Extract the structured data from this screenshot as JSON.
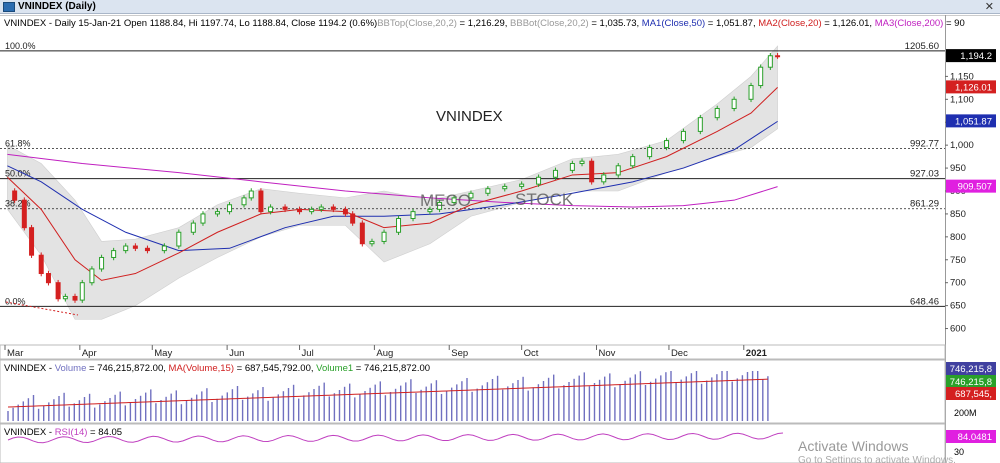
{
  "window": {
    "title": "VNINDEX (Daily)",
    "close_glyph": "✕"
  },
  "header": {
    "symbol": "VNINDEX - Daily 15-Jan-21 Open 1188.84, Hi 1197.74, Lo 1188.84, Close 1194.2 (0.6%)",
    "bbtop": "BBTop(Close,20,2)",
    "bbtop_val": " = 1,216.29, ",
    "bbbot": "BBBot(Close,20,2)",
    "bbbot_val": " = 1,035.73, ",
    "ma1": "MA1(Close,50)",
    "ma1_val": " = 1,051.87, ",
    "ma2": "MA2(Close,20)",
    "ma2_val": " = 1,126.01, ",
    "ma3": "MA3(Close,200)",
    "ma3_val": " = 90"
  },
  "fib": {
    "levels": [
      {
        "label": "100.0%",
        "value": 1205.6,
        "value_label": "1205.60"
      },
      {
        "label": "61.8%",
        "value": 992.77,
        "value_label": "992.77"
      },
      {
        "label": "50.0%",
        "value": 927.03,
        "value_label": "927.03"
      },
      {
        "label": "38.2%",
        "value": 861.29,
        "value_label": "861.29"
      },
      {
        "label": "0.0%",
        "value": 648.46,
        "value_label": "648.46"
      }
    ]
  },
  "badges": {
    "price": "1,194.2",
    "ma2": "1,126.01",
    "ma1": "1,051.87",
    "ma3": "909.507",
    "vol1": "746,215,8",
    "vol2": "746,215,8",
    "vol3": "687,545,",
    "rsi": "84.0481"
  },
  "colors": {
    "up": "#2aa02a",
    "down": "#d42020",
    "ma1": "#1f2fb0",
    "ma2": "#d02020",
    "ma3": "#c020c0",
    "band": "#d8d8d8",
    "volume": "#7070c0",
    "rsi": "#c040c0"
  },
  "watermark": {
    "title": "VNINDEX",
    "text1": "MECO",
    "text2": "STOCK"
  },
  "volume_panel": {
    "label": "VNINDEX - ",
    "vol": "Volume",
    "vol_val": " = 746,215,872.00, ",
    "ma": "MA(Volume,15)",
    "ma_val": " = 687,545,792.00, ",
    "vol1": "Volume1",
    "vol1_val": " = 746,215,872.00",
    "axis_label": "200M"
  },
  "rsi_panel": {
    "label": "VNINDEX - ",
    "rsi": "RSI(14)",
    "rsi_val": " = 84.05",
    "axis_label": "30"
  },
  "activate": {
    "line1": "Activate Windows",
    "line2": "Go to Settings to activate Windows."
  },
  "chart_data": {
    "type": "candlestick",
    "title": "VNINDEX (Daily)",
    "ylim": [
      575,
      1225
    ],
    "y_ticks": [
      600,
      650,
      700,
      750,
      800,
      850,
      900,
      950,
      1000,
      1050,
      1100,
      1150
    ],
    "x_ticks": [
      "Mar",
      "Apr",
      "May",
      "Jun",
      "Jul",
      "Aug",
      "Sep",
      "Oct",
      "Nov",
      "Dec",
      "2021"
    ],
    "close": [
      {
        "d": "2020-03-02",
        "v": 900
      },
      {
        "d": "2020-03-05",
        "v": 880
      },
      {
        "d": "2020-03-09",
        "v": 820
      },
      {
        "d": "2020-03-12",
        "v": 760
      },
      {
        "d": "2020-03-16",
        "v": 720
      },
      {
        "d": "2020-03-19",
        "v": 700
      },
      {
        "d": "2020-03-23",
        "v": 665
      },
      {
        "d": "2020-03-26",
        "v": 670
      },
      {
        "d": "2020-03-30",
        "v": 662
      },
      {
        "d": "2020-04-02",
        "v": 700
      },
      {
        "d": "2020-04-06",
        "v": 730
      },
      {
        "d": "2020-04-10",
        "v": 755
      },
      {
        "d": "2020-04-15",
        "v": 770
      },
      {
        "d": "2020-04-20",
        "v": 780
      },
      {
        "d": "2020-04-24",
        "v": 775
      },
      {
        "d": "2020-04-29",
        "v": 770
      },
      {
        "d": "2020-05-06",
        "v": 780
      },
      {
        "d": "2020-05-12",
        "v": 810
      },
      {
        "d": "2020-05-18",
        "v": 830
      },
      {
        "d": "2020-05-22",
        "v": 850
      },
      {
        "d": "2020-05-28",
        "v": 855
      },
      {
        "d": "2020-06-02",
        "v": 870
      },
      {
        "d": "2020-06-08",
        "v": 885
      },
      {
        "d": "2020-06-11",
        "v": 900
      },
      {
        "d": "2020-06-15",
        "v": 855
      },
      {
        "d": "2020-06-19",
        "v": 865
      },
      {
        "d": "2020-06-25",
        "v": 860
      },
      {
        "d": "2020-07-01",
        "v": 855
      },
      {
        "d": "2020-07-06",
        "v": 860
      },
      {
        "d": "2020-07-10",
        "v": 865
      },
      {
        "d": "2020-07-15",
        "v": 860
      },
      {
        "d": "2020-07-20",
        "v": 850
      },
      {
        "d": "2020-07-23",
        "v": 830
      },
      {
        "d": "2020-07-27",
        "v": 785
      },
      {
        "d": "2020-07-31",
        "v": 790
      },
      {
        "d": "2020-08-05",
        "v": 810
      },
      {
        "d": "2020-08-11",
        "v": 840
      },
      {
        "d": "2020-08-17",
        "v": 855
      },
      {
        "d": "2020-08-24",
        "v": 860
      },
      {
        "d": "2020-08-28",
        "v": 875
      },
      {
        "d": "2020-09-03",
        "v": 885
      },
      {
        "d": "2020-09-10",
        "v": 895
      },
      {
        "d": "2020-09-17",
        "v": 905
      },
      {
        "d": "2020-09-24",
        "v": 910
      },
      {
        "d": "2020-10-01",
        "v": 915
      },
      {
        "d": "2020-10-08",
        "v": 930
      },
      {
        "d": "2020-10-15",
        "v": 945
      },
      {
        "d": "2020-10-22",
        "v": 960
      },
      {
        "d": "2020-10-26",
        "v": 965
      },
      {
        "d": "2020-10-30",
        "v": 920
      },
      {
        "d": "2020-11-04",
        "v": 935
      },
      {
        "d": "2020-11-10",
        "v": 955
      },
      {
        "d": "2020-11-16",
        "v": 975
      },
      {
        "d": "2020-11-23",
        "v": 995
      },
      {
        "d": "2020-11-30",
        "v": 1010
      },
      {
        "d": "2020-12-07",
        "v": 1030
      },
      {
        "d": "2020-12-14",
        "v": 1060
      },
      {
        "d": "2020-12-21",
        "v": 1080
      },
      {
        "d": "2020-12-28",
        "v": 1100
      },
      {
        "d": "2021-01-04",
        "v": 1130
      },
      {
        "d": "2021-01-08",
        "v": 1170
      },
      {
        "d": "2021-01-12",
        "v": 1195
      },
      {
        "d": "2021-01-15",
        "v": 1194.2
      }
    ],
    "ma2": [
      {
        "d": "2020-03-02",
        "v": 930
      },
      {
        "d": "2020-03-16",
        "v": 860
      },
      {
        "d": "2020-03-30",
        "v": 750
      },
      {
        "d": "2020-04-10",
        "v": 705
      },
      {
        "d": "2020-04-24",
        "v": 720
      },
      {
        "d": "2020-05-12",
        "v": 765
      },
      {
        "d": "2020-05-28",
        "v": 810
      },
      {
        "d": "2020-06-15",
        "v": 850
      },
      {
        "d": "2020-07-01",
        "v": 860
      },
      {
        "d": "2020-07-20",
        "v": 855
      },
      {
        "d": "2020-08-05",
        "v": 820
      },
      {
        "d": "2020-08-24",
        "v": 830
      },
      {
        "d": "2020-09-10",
        "v": 870
      },
      {
        "d": "2020-10-01",
        "v": 900
      },
      {
        "d": "2020-10-22",
        "v": 935
      },
      {
        "d": "2020-11-10",
        "v": 940
      },
      {
        "d": "2020-11-30",
        "v": 975
      },
      {
        "d": "2020-12-21",
        "v": 1030
      },
      {
        "d": "2021-01-04",
        "v": 1070
      },
      {
        "d": "2021-01-15",
        "v": 1126.01
      }
    ],
    "ma1": [
      {
        "d": "2020-03-02",
        "v": 955
      },
      {
        "d": "2020-03-16",
        "v": 920
      },
      {
        "d": "2020-04-02",
        "v": 860
      },
      {
        "d": "2020-04-20",
        "v": 810
      },
      {
        "d": "2020-05-12",
        "v": 770
      },
      {
        "d": "2020-06-02",
        "v": 775
      },
      {
        "d": "2020-06-25",
        "v": 820
      },
      {
        "d": "2020-07-15",
        "v": 845
      },
      {
        "d": "2020-08-05",
        "v": 845
      },
      {
        "d": "2020-08-28",
        "v": 850
      },
      {
        "d": "2020-09-24",
        "v": 870
      },
      {
        "d": "2020-10-22",
        "v": 895
      },
      {
        "d": "2020-11-16",
        "v": 920
      },
      {
        "d": "2020-12-07",
        "v": 950
      },
      {
        "d": "2020-12-28",
        "v": 990
      },
      {
        "d": "2021-01-15",
        "v": 1051.87
      }
    ],
    "ma3": [
      {
        "d": "2020-03-02",
        "v": 980
      },
      {
        "d": "2020-04-02",
        "v": 960
      },
      {
        "d": "2020-05-12",
        "v": 940
      },
      {
        "d": "2020-06-15",
        "v": 920
      },
      {
        "d": "2020-07-20",
        "v": 900
      },
      {
        "d": "2020-08-24",
        "v": 885
      },
      {
        "d": "2020-09-24",
        "v": 875
      },
      {
        "d": "2020-10-22",
        "v": 868
      },
      {
        "d": "2020-11-16",
        "v": 865
      },
      {
        "d": "2020-12-07",
        "v": 868
      },
      {
        "d": "2020-12-28",
        "v": 880
      },
      {
        "d": "2021-01-15",
        "v": 909.507
      }
    ],
    "bb_top": [
      {
        "d": "2020-03-02",
        "v": 1000
      },
      {
        "d": "2020-03-16",
        "v": 960
      },
      {
        "d": "2020-03-30",
        "v": 880
      },
      {
        "d": "2020-04-10",
        "v": 790
      },
      {
        "d": "2020-04-24",
        "v": 795
      },
      {
        "d": "2020-05-12",
        "v": 820
      },
      {
        "d": "2020-05-28",
        "v": 870
      },
      {
        "d": "2020-06-15",
        "v": 905
      },
      {
        "d": "2020-07-01",
        "v": 895
      },
      {
        "d": "2020-07-20",
        "v": 885
      },
      {
        "d": "2020-08-05",
        "v": 900
      },
      {
        "d": "2020-08-24",
        "v": 880
      },
      {
        "d": "2020-09-10",
        "v": 900
      },
      {
        "d": "2020-10-01",
        "v": 925
      },
      {
        "d": "2020-10-22",
        "v": 970
      },
      {
        "d": "2020-11-10",
        "v": 980
      },
      {
        "d": "2020-11-30",
        "v": 1010
      },
      {
        "d": "2020-12-21",
        "v": 1090
      },
      {
        "d": "2021-01-04",
        "v": 1150
      },
      {
        "d": "2021-01-15",
        "v": 1216.29
      }
    ],
    "bb_bot": [
      {
        "d": "2020-03-02",
        "v": 860
      },
      {
        "d": "2020-03-16",
        "v": 760
      },
      {
        "d": "2020-03-30",
        "v": 620
      },
      {
        "d": "2020-04-10",
        "v": 620
      },
      {
        "d": "2020-04-24",
        "v": 650
      },
      {
        "d": "2020-05-12",
        "v": 710
      },
      {
        "d": "2020-05-28",
        "v": 755
      },
      {
        "d": "2020-06-15",
        "v": 800
      },
      {
        "d": "2020-07-01",
        "v": 825
      },
      {
        "d": "2020-07-20",
        "v": 825
      },
      {
        "d": "2020-08-05",
        "v": 745
      },
      {
        "d": "2020-08-24",
        "v": 785
      },
      {
        "d": "2020-09-10",
        "v": 845
      },
      {
        "d": "2020-10-01",
        "v": 875
      },
      {
        "d": "2020-10-22",
        "v": 900
      },
      {
        "d": "2020-11-10",
        "v": 900
      },
      {
        "d": "2020-11-30",
        "v": 940
      },
      {
        "d": "2020-12-21",
        "v": 975
      },
      {
        "d": "2021-01-04",
        "v": 995
      },
      {
        "d": "2021-01-15",
        "v": 1035.73
      }
    ]
  }
}
